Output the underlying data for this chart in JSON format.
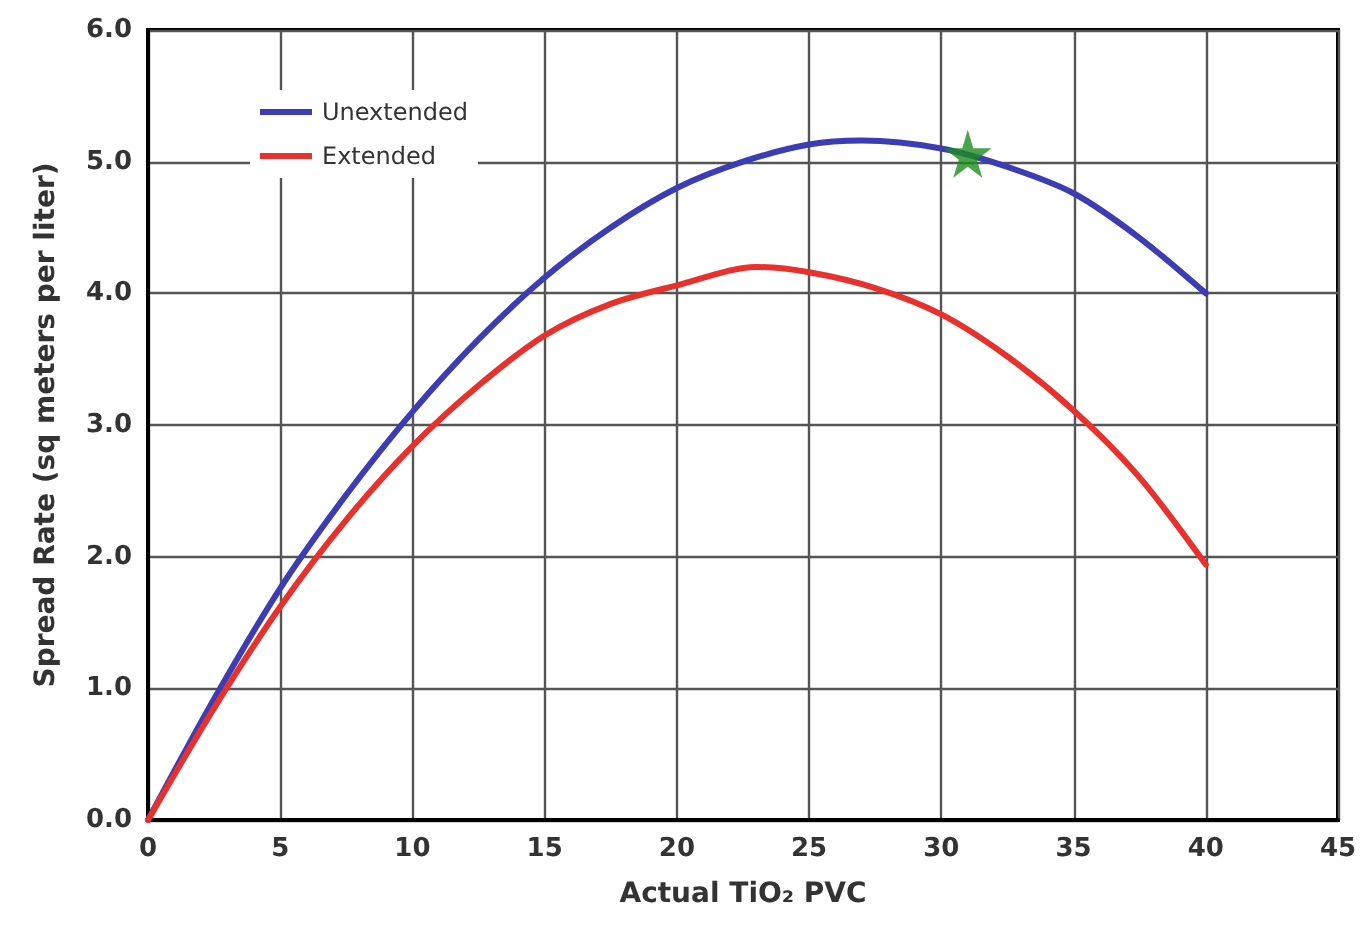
{
  "chart_data": {
    "type": "line",
    "xlabel": "Actual TiO₂ PVC",
    "ylabel": "Spread Rate (sq meters per liter)",
    "xlim": [
      0,
      45
    ],
    "xticks": [
      0,
      5,
      10,
      15,
      20,
      25,
      30,
      35,
      40,
      45
    ],
    "ylim": [
      0,
      6
    ],
    "yticks": [
      {
        "value": 0,
        "label": "0.0"
      },
      {
        "value": 1,
        "label": "1.0"
      },
      {
        "value": 2,
        "label": "2.0"
      },
      {
        "value": 3,
        "label": "3.0"
      },
      {
        "value": 4,
        "label": "4.0"
      },
      {
        "value": 5,
        "label": "5.0"
      },
      {
        "value": 6,
        "label": "6.0"
      }
    ],
    "grid": true,
    "legend": "top left",
    "marker": "none",
    "line_style": "solid",
    "series": [
      {
        "name": "Unextended",
        "color": "#3c3cb4",
        "x": [
          0,
          2.5,
          5,
          7.5,
          10,
          12.5,
          15,
          17.5,
          20,
          22.5,
          25,
          27,
          30,
          32.5,
          35,
          37.5,
          40
        ],
        "values": [
          0,
          0.92,
          1.76,
          2.47,
          3.1,
          3.65,
          4.12,
          4.5,
          4.8,
          5.0,
          5.13,
          5.16,
          5.1,
          4.96,
          4.76,
          4.42,
          4.0
        ]
      },
      {
        "name": "Extended",
        "color": "#e8312d",
        "x": [
          0,
          2.5,
          5,
          7.5,
          10,
          12.5,
          15,
          17.5,
          20,
          23,
          25,
          27.5,
          30,
          32.5,
          35,
          37.5,
          40
        ],
        "values": [
          0,
          0.85,
          1.62,
          2.28,
          2.84,
          3.3,
          3.68,
          3.92,
          4.06,
          4.2,
          4.16,
          4.04,
          3.84,
          3.52,
          3.11,
          2.6,
          1.94
        ]
      },
      {
        "type": "scatter",
        "marker": "star",
        "color": "#1e8c1e",
        "x": [
          31
        ],
        "values": [
          5.06
        ]
      }
    ]
  }
}
